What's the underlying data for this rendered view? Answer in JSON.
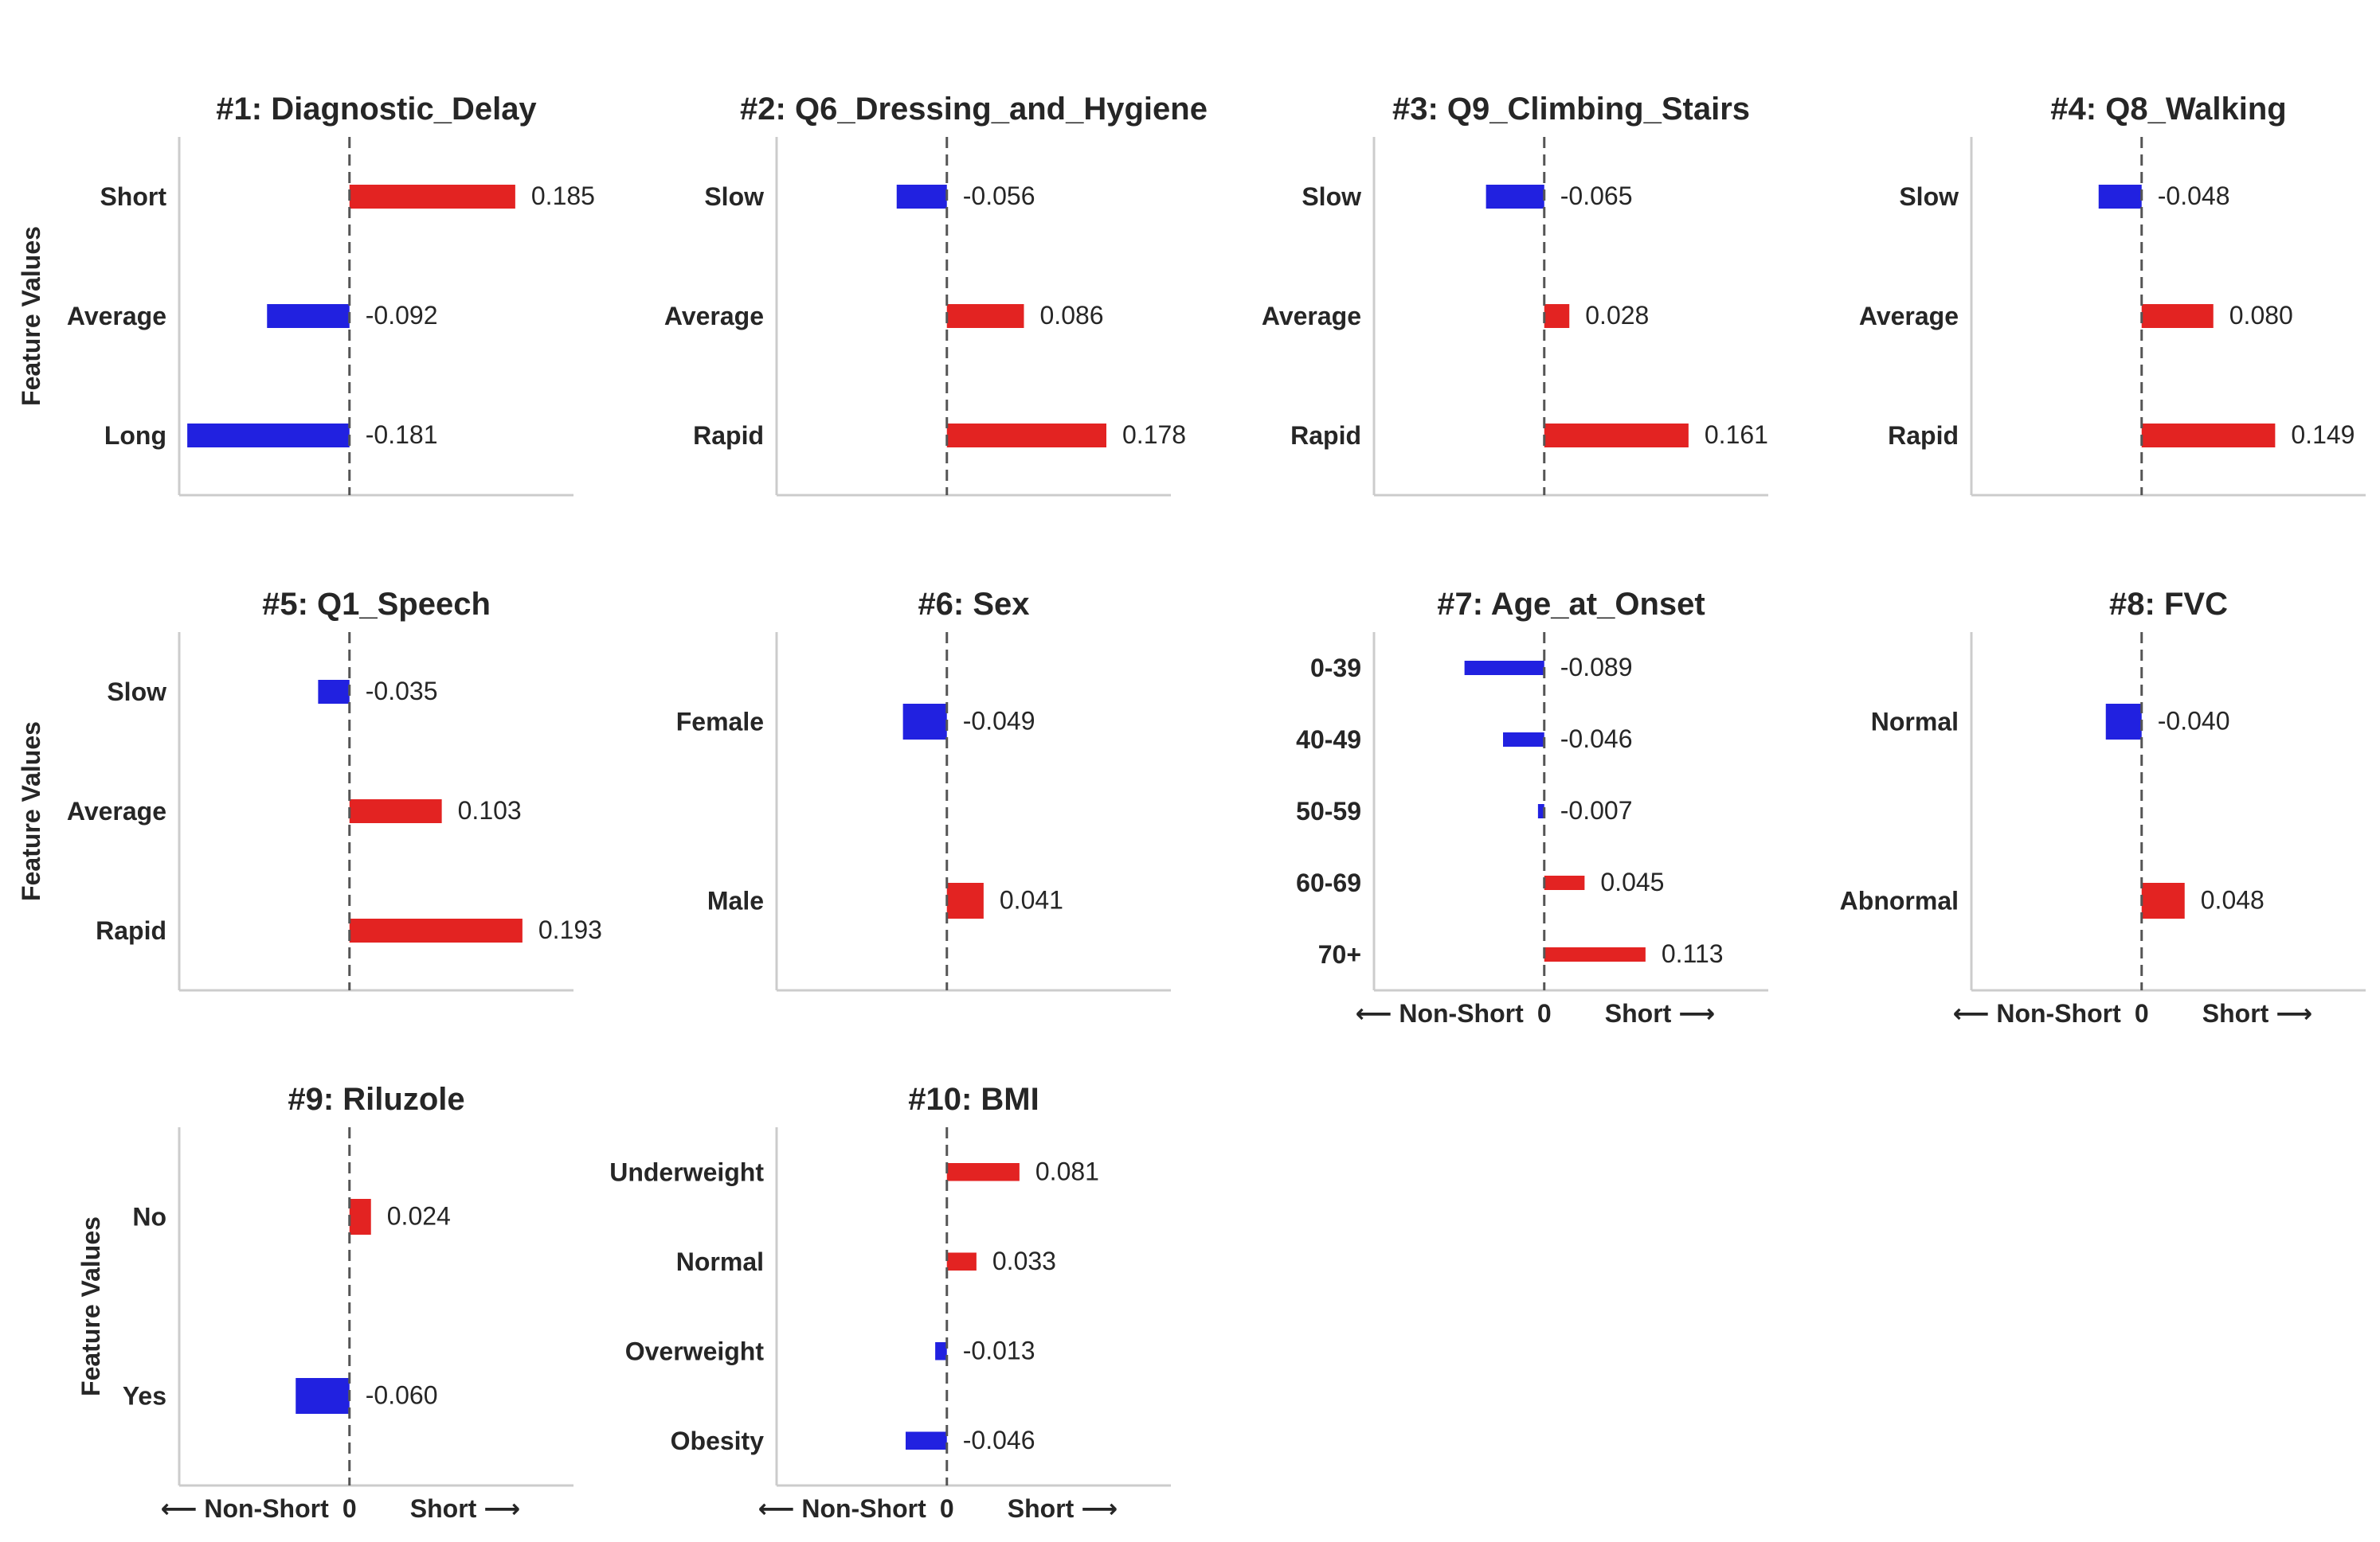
{
  "chart_data": [
    {
      "type": "bar",
      "orientation": "horizontal",
      "title": "#1: Diagnostic_Delay",
      "ylabel": "Feature Values",
      "categories": [
        "Short",
        "Average",
        "Long"
      ],
      "values": [
        0.185,
        -0.092,
        -0.181
      ],
      "value_labels": [
        "0.185",
        "-0.092",
        "-0.181"
      ],
      "xlim": [
        -0.19,
        0.25
      ]
    },
    {
      "type": "bar",
      "orientation": "horizontal",
      "title": "#2: Q6_Dressing_and_Hygiene",
      "ylabel": "",
      "categories": [
        "Slow",
        "Average",
        "Rapid"
      ],
      "values": [
        -0.056,
        0.086,
        0.178
      ],
      "value_labels": [
        "-0.056",
        "0.086",
        "0.178"
      ],
      "xlim": [
        -0.19,
        0.25
      ]
    },
    {
      "type": "bar",
      "orientation": "horizontal",
      "title": "#3: Q9_Climbing_Stairs",
      "ylabel": "",
      "categories": [
        "Slow",
        "Average",
        "Rapid"
      ],
      "values": [
        -0.065,
        0.028,
        0.161
      ],
      "value_labels": [
        "-0.065",
        "0.028",
        "0.161"
      ],
      "xlim": [
        -0.19,
        0.25
      ]
    },
    {
      "type": "bar",
      "orientation": "horizontal",
      "title": "#4: Q8_Walking",
      "ylabel": "",
      "categories": [
        "Slow",
        "Average",
        "Rapid"
      ],
      "values": [
        -0.048,
        0.08,
        0.149
      ],
      "value_labels": [
        "-0.048",
        "0.080",
        "0.149"
      ],
      "xlim": [
        -0.19,
        0.25
      ]
    },
    {
      "type": "bar",
      "orientation": "horizontal",
      "title": "#5: Q1_Speech",
      "ylabel": "Feature Values",
      "categories": [
        "Slow",
        "Average",
        "Rapid"
      ],
      "values": [
        -0.035,
        0.103,
        0.193
      ],
      "value_labels": [
        "-0.035",
        "0.103",
        "0.193"
      ],
      "xlim": [
        -0.19,
        0.25
      ]
    },
    {
      "type": "bar",
      "orientation": "horizontal",
      "title": "#6: Sex",
      "ylabel": "",
      "categories": [
        "Female",
        "Male"
      ],
      "values": [
        -0.049,
        0.041
      ],
      "value_labels": [
        "-0.049",
        "0.041"
      ],
      "xlim": [
        -0.19,
        0.25
      ]
    },
    {
      "type": "bar",
      "orientation": "horizontal",
      "title": "#7: Age_at_Onset",
      "ylabel": "",
      "categories": [
        "0-39",
        "40-49",
        "50-59",
        "60-69",
        "70+"
      ],
      "values": [
        -0.089,
        -0.046,
        -0.007,
        0.045,
        0.113
      ],
      "value_labels": [
        "-0.089",
        "-0.046",
        "-0.007",
        "0.045",
        "0.113"
      ],
      "xlim": [
        -0.19,
        0.25
      ],
      "xticks": {
        "left": "⟵  Non-Short",
        "zero": "0",
        "right": "Short  ⟶"
      }
    },
    {
      "type": "bar",
      "orientation": "horizontal",
      "title": "#8: FVC",
      "ylabel": "",
      "categories": [
        "Normal",
        "Abnormal"
      ],
      "values": [
        -0.04,
        0.048
      ],
      "value_labels": [
        "-0.040",
        "0.048"
      ],
      "xlim": [
        -0.19,
        0.25
      ],
      "xticks": {
        "left": "⟵  Non-Short",
        "zero": "0",
        "right": "Short  ⟶"
      }
    },
    {
      "type": "bar",
      "orientation": "horizontal",
      "title": "#9: Riluzole",
      "ylabel": "Feature Values",
      "categories": [
        "No",
        "Yes"
      ],
      "values": [
        0.024,
        -0.06
      ],
      "value_labels": [
        "0.024",
        "-0.060"
      ],
      "xlim": [
        -0.19,
        0.25
      ],
      "xticks": {
        "left": "⟵  Non-Short",
        "zero": "0",
        "right": "Short  ⟶"
      }
    },
    {
      "type": "bar",
      "orientation": "horizontal",
      "title": "#10: BMI",
      "ylabel": "",
      "categories": [
        "Underweight",
        "Normal",
        "Overweight",
        "Obesity"
      ],
      "values": [
        0.081,
        0.033,
        -0.013,
        -0.046
      ],
      "value_labels": [
        "0.081",
        "0.033",
        "-0.013",
        "-0.046"
      ],
      "xlim": [
        -0.19,
        0.25
      ],
      "xticks": {
        "left": "⟵  Non-Short",
        "zero": "0",
        "right": "Short  ⟶"
      }
    }
  ],
  "colors": {
    "positive": "#e32322",
    "negative": "#2121e0",
    "zero_line": "#555555",
    "spine": "#cccccc",
    "text": "#262626"
  }
}
